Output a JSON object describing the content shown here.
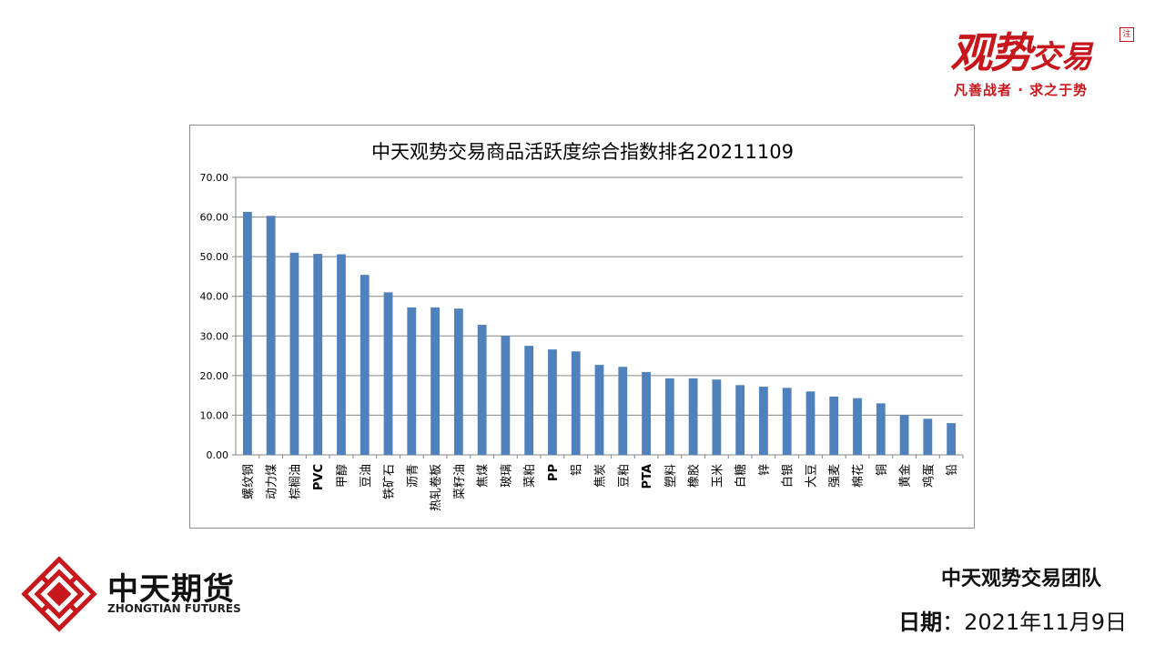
{
  "header": {
    "logo_text_big": "观势",
    "logo_text_small": "交易",
    "logo_seal": "注",
    "slogan": "凡善战者 · 求之于势"
  },
  "footer": {
    "company_cn": "中天期货",
    "company_en": "ZHONGTIAN FUTURES",
    "team": "中天观势交易团队",
    "date_label": "日期",
    "date_sep": "：",
    "date_value": "2021年11月9日"
  },
  "colors": {
    "bar": "#4f81bd",
    "brand_red": "#c8161d",
    "grid": "#868686"
  },
  "chart_data": {
    "type": "bar",
    "title": "中天观势交易商品活跃度综合指数排名20211109",
    "xlabel": "",
    "ylabel": "",
    "ylim": [
      0,
      70
    ],
    "yticks": [
      "0.00",
      "10.00",
      "20.00",
      "30.00",
      "40.00",
      "50.00",
      "60.00",
      "70.00"
    ],
    "grid": true,
    "legend": "none",
    "categories": [
      "螺纹钢",
      "动力煤",
      "棕榈油",
      "PVC",
      "甲醇",
      "豆油",
      "铁矿石",
      "沥青",
      "热轧卷板",
      "菜籽油",
      "焦煤",
      "玻璃",
      "菜粕",
      "PP",
      "铝",
      "焦炭",
      "豆粕",
      "PTA",
      "塑料",
      "橡胶",
      "玉米",
      "白糖",
      "锌",
      "白银",
      "大豆",
      "强麦",
      "棉花",
      "铜",
      "黄金",
      "鸡蛋",
      "铅"
    ],
    "values": [
      61.3,
      60.3,
      51.0,
      50.7,
      50.6,
      45.4,
      41.0,
      37.2,
      37.2,
      36.9,
      32.8,
      30.0,
      27.5,
      26.6,
      26.1,
      22.7,
      22.2,
      20.9,
      19.3,
      19.3,
      19.0,
      17.6,
      17.2,
      16.9,
      16.0,
      14.7,
      14.3,
      13.0,
      10.0,
      9.1,
      8.0
    ]
  }
}
